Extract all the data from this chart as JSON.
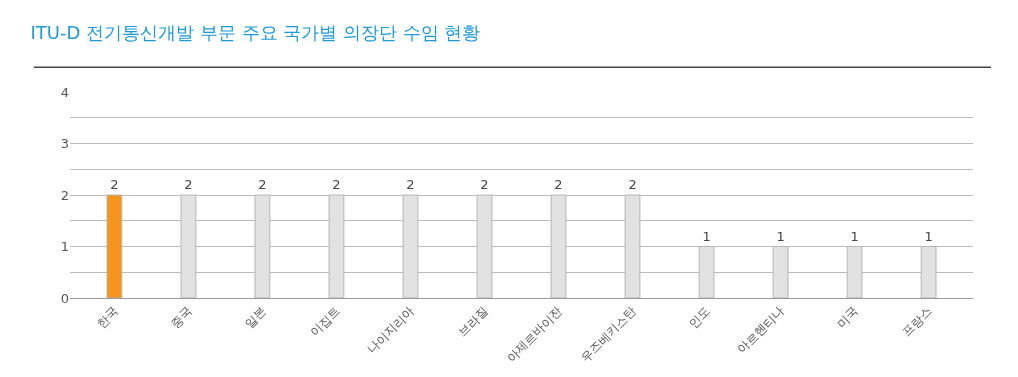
{
  "chart_data": {
    "type": "bar",
    "title": "ITU-D 전기통신개발 부문 주요 국가별 의장단 수임 현황",
    "categories": [
      "한국",
      "중국",
      "일본",
      "이집트",
      "나이지리아",
      "브라질",
      "아제르바이잔",
      "우즈베키스탄",
      "인도",
      "아르헨티나",
      "미국",
      "프랑스"
    ],
    "values": [
      2,
      2,
      2,
      2,
      2,
      2,
      2,
      2,
      1,
      1,
      1,
      1
    ],
    "colors": [
      "#f7941d",
      "#e2e2e2",
      "#e2e2e2",
      "#e2e2e2",
      "#e2e2e2",
      "#e2e2e2",
      "#e2e2e2",
      "#e2e2e2",
      "#e2e2e2",
      "#e2e2e2",
      "#e2e2e2",
      "#e2e2e2"
    ],
    "ylim": [
      0,
      4
    ],
    "yticks": [
      0,
      {
        "value": 0.5,
        "label": null
      },
      1,
      {
        "value": 1.5,
        "label": null
      },
      2,
      {
        "value": 2.5,
        "label": null
      },
      3,
      {
        "value": 3.5,
        "label": null
      },
      4
    ],
    "grid": "y",
    "data_labels": true
  }
}
